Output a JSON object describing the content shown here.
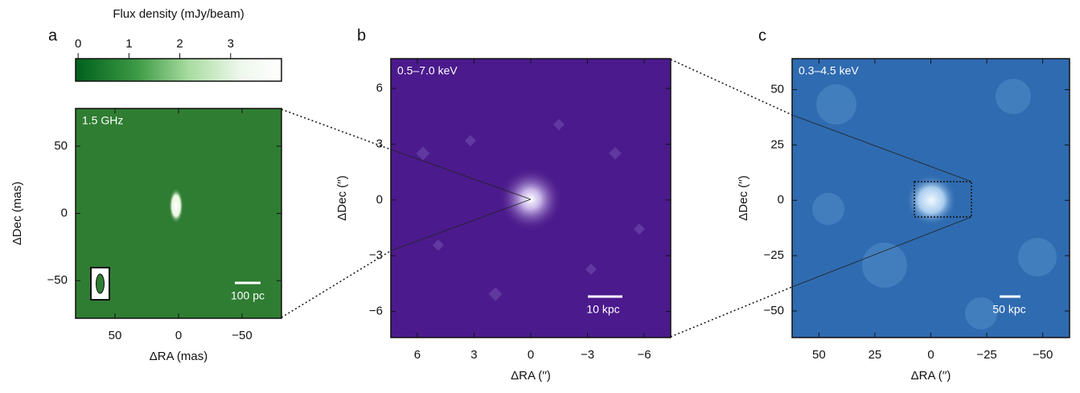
{
  "colorbar": {
    "label": "Flux density (mJy/beam)",
    "lim": [
      -0.05,
      4.0
    ],
    "ticks": [
      0,
      1,
      2,
      3
    ]
  },
  "panels": [
    {
      "letter": "a",
      "band": "1.5 GHz",
      "scalebar": "100 pc",
      "xlabel": "ΔRA (mas)",
      "ylabel": "ΔDec (mas)",
      "xlim": [
        81,
        -81
      ],
      "ylim": [
        -78,
        78
      ],
      "xticks": [
        50,
        0,
        {
          "value": -50,
          "label": "−50"
        }
      ],
      "yticks": [
        {
          "value": -50,
          "label": "−50"
        },
        0,
        50
      ]
    },
    {
      "letter": "b",
      "band": "0.5–7.0 keV",
      "scalebar": "10 kpc",
      "xlabel": "ΔRA (′′)",
      "ylabel": "ΔDec (′′)",
      "xlim": [
        7.4,
        -7.4
      ],
      "ylim": [
        -7.4,
        7.6
      ],
      "xticks": [
        6,
        3,
        0,
        {
          "value": -3,
          "label": "−3"
        },
        {
          "value": -6,
          "label": "−6"
        }
      ],
      "yticks": [
        {
          "value": -6,
          "label": "−6"
        },
        {
          "value": -3,
          "label": "−3"
        },
        0,
        3,
        6
      ]
    },
    {
      "letter": "c",
      "band": "0.3–4.5 keV",
      "scalebar": "50 kpc",
      "xlabel": "ΔRA (′′)",
      "ylabel": "ΔDec (′′)",
      "xlim": [
        62,
        -62
      ],
      "ylim": [
        -62,
        64
      ],
      "xticks": [
        50,
        25,
        0,
        {
          "value": -25,
          "label": "−25"
        },
        {
          "value": -50,
          "label": "−50"
        }
      ],
      "yticks": [
        {
          "value": -50,
          "label": "−50"
        },
        {
          "value": -25,
          "label": "−25"
        },
        0,
        25,
        50
      ]
    }
  ]
}
